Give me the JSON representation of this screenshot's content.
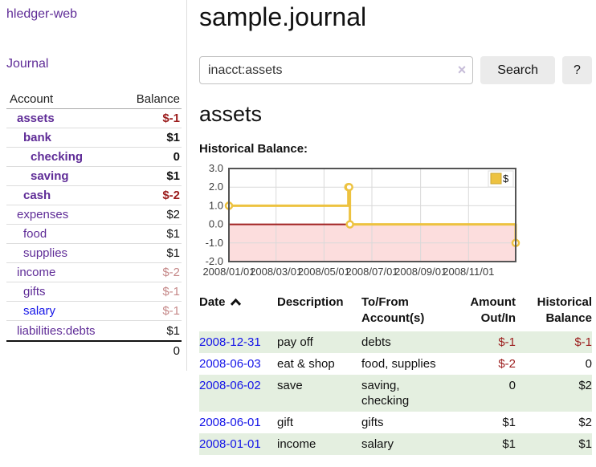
{
  "app": {
    "brand": "hledger-web",
    "nav_journal": "Journal"
  },
  "sidebar": {
    "headers": {
      "account": "Account",
      "balance": "Balance"
    },
    "accounts": [
      {
        "name": "assets",
        "depth": 0,
        "bold": true,
        "balance": "$-1",
        "balance_style": "neg-strong"
      },
      {
        "name": "bank",
        "depth": 1,
        "bold": true,
        "balance": "$1",
        "balance_style": "normal"
      },
      {
        "name": "checking",
        "depth": 2,
        "bold": true,
        "balance": "0",
        "balance_style": "normal"
      },
      {
        "name": "saving",
        "depth": 2,
        "bold": true,
        "balance": "$1",
        "balance_style": "normal"
      },
      {
        "name": "cash",
        "depth": 1,
        "bold": true,
        "balance": "$-2",
        "balance_style": "neg-strong"
      },
      {
        "name": "expenses",
        "depth": 0,
        "bold": false,
        "balance": "$2",
        "balance_style": "normal"
      },
      {
        "name": "food",
        "depth": 1,
        "bold": false,
        "balance": "$1",
        "balance_style": "normal"
      },
      {
        "name": "supplies",
        "depth": 1,
        "bold": false,
        "balance": "$1",
        "balance_style": "normal"
      },
      {
        "name": "income",
        "depth": 0,
        "bold": false,
        "balance": "$-2",
        "balance_style": "neg-light"
      },
      {
        "name": "gifts",
        "depth": 1,
        "bold": false,
        "balance": "$-1",
        "balance_style": "neg-light"
      },
      {
        "name": "salary",
        "depth": 1,
        "bold": false,
        "link_style": "blue",
        "balance": "$-1",
        "balance_style": "neg-light"
      },
      {
        "name": "liabilities:debts",
        "depth": 0,
        "bold": false,
        "balance": "$1",
        "balance_style": "normal"
      }
    ],
    "total": "0"
  },
  "header": {
    "title": "sample.journal"
  },
  "search": {
    "value": "inacct:assets",
    "clear_icon": "×",
    "button_label": "Search",
    "help_label": "?"
  },
  "account_page": {
    "title": "assets",
    "chart_label": "Historical Balance:"
  },
  "chart_data": {
    "type": "line",
    "step": true,
    "title": "Historical Balance:",
    "legend": {
      "position": "top-right",
      "label": "$"
    },
    "series": [
      {
        "name": "$",
        "color": "#edc240",
        "points": [
          [
            "2008-01-01",
            1
          ],
          [
            "2008-06-01",
            2
          ],
          [
            "2008-06-02",
            2
          ],
          [
            "2008-06-03",
            0
          ],
          [
            "2008-12-31",
            -1
          ]
        ]
      }
    ],
    "ylim": [
      -2,
      3
    ],
    "yticks": [
      3.0,
      2.0,
      1.0,
      0.0,
      -1.0,
      -2.0
    ],
    "xticks": [
      "2008/01/01",
      "2008/03/01",
      "2008/05/01",
      "2008/07/01",
      "2008/09/01",
      "2008/11/01"
    ],
    "grid": true,
    "negative_region_color": "#fcdddd",
    "zero_line_color": "#a02020",
    "border_color": "#545454",
    "gridline_color": "#d9d9d9"
  },
  "register": {
    "headers": [
      {
        "label": "Date",
        "sorted": "asc"
      },
      {
        "label": "Description"
      },
      {
        "label": "To/From\nAccount(s)"
      },
      {
        "label": "Amount\nOut/In"
      },
      {
        "label": "Historical\nBalance"
      }
    ],
    "rows": [
      {
        "date": "2008-12-31",
        "description": "pay off",
        "accounts": "debts",
        "amount": "$-1",
        "amount_negative": true,
        "balance": "$-1",
        "balance_negative": true
      },
      {
        "date": "2008-06-03",
        "description": "eat & shop",
        "accounts": "food, supplies",
        "amount": "$-2",
        "amount_negative": true,
        "balance": "0",
        "balance_negative": false
      },
      {
        "date": "2008-06-02",
        "description": "save",
        "accounts": "saving,\nchecking",
        "amount": "0",
        "amount_negative": false,
        "balance": "$2",
        "balance_negative": false
      },
      {
        "date": "2008-06-01",
        "description": "gift",
        "accounts": "gifts",
        "amount": "$1",
        "amount_negative": false,
        "balance": "$2",
        "balance_negative": false
      },
      {
        "date": "2008-01-01",
        "description": "income",
        "accounts": "salary",
        "amount": "$1",
        "amount_negative": false,
        "balance": "$1",
        "balance_negative": false
      }
    ]
  }
}
